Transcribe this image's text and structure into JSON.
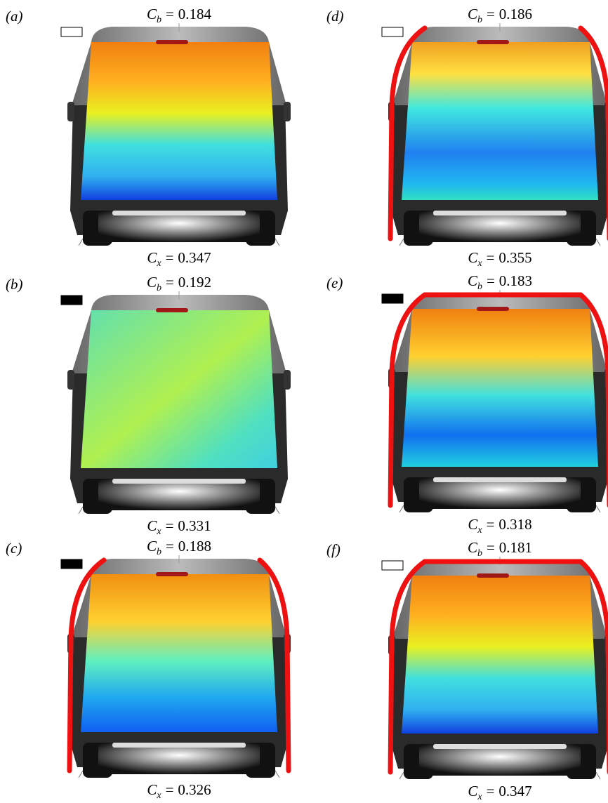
{
  "symbols": {
    "base": {
      "letter": "C",
      "subscript": "b",
      "relation": "="
    },
    "drag": {
      "letter": "C",
      "subscript": "x",
      "relation": "="
    }
  },
  "panels": [
    {
      "label": "(a)",
      "base_pressure": 0.184,
      "drag": 0.347,
      "indicator_filled": false,
      "red_edges": []
    },
    {
      "label": "(b)",
      "base_pressure": 0.192,
      "drag": 0.331,
      "indicator_filled": true,
      "red_edges": []
    },
    {
      "label": "(c)",
      "base_pressure": 0.188,
      "drag": 0.326,
      "indicator_filled": true,
      "red_edges": [
        "left",
        "right"
      ]
    },
    {
      "label": "(d)",
      "base_pressure": 0.186,
      "drag": 0.355,
      "indicator_filled": false,
      "red_edges": [
        "left",
        "right"
      ]
    },
    {
      "label": "(e)",
      "base_pressure": 0.183,
      "drag": 0.318,
      "indicator_filled": true,
      "red_edges": [
        "left",
        "right",
        "top"
      ]
    },
    {
      "label": "(f)",
      "base_pressure": 0.181,
      "drag": 0.347,
      "indicator_filled": false,
      "red_edges": [
        "left",
        "right",
        "top"
      ]
    }
  ]
}
